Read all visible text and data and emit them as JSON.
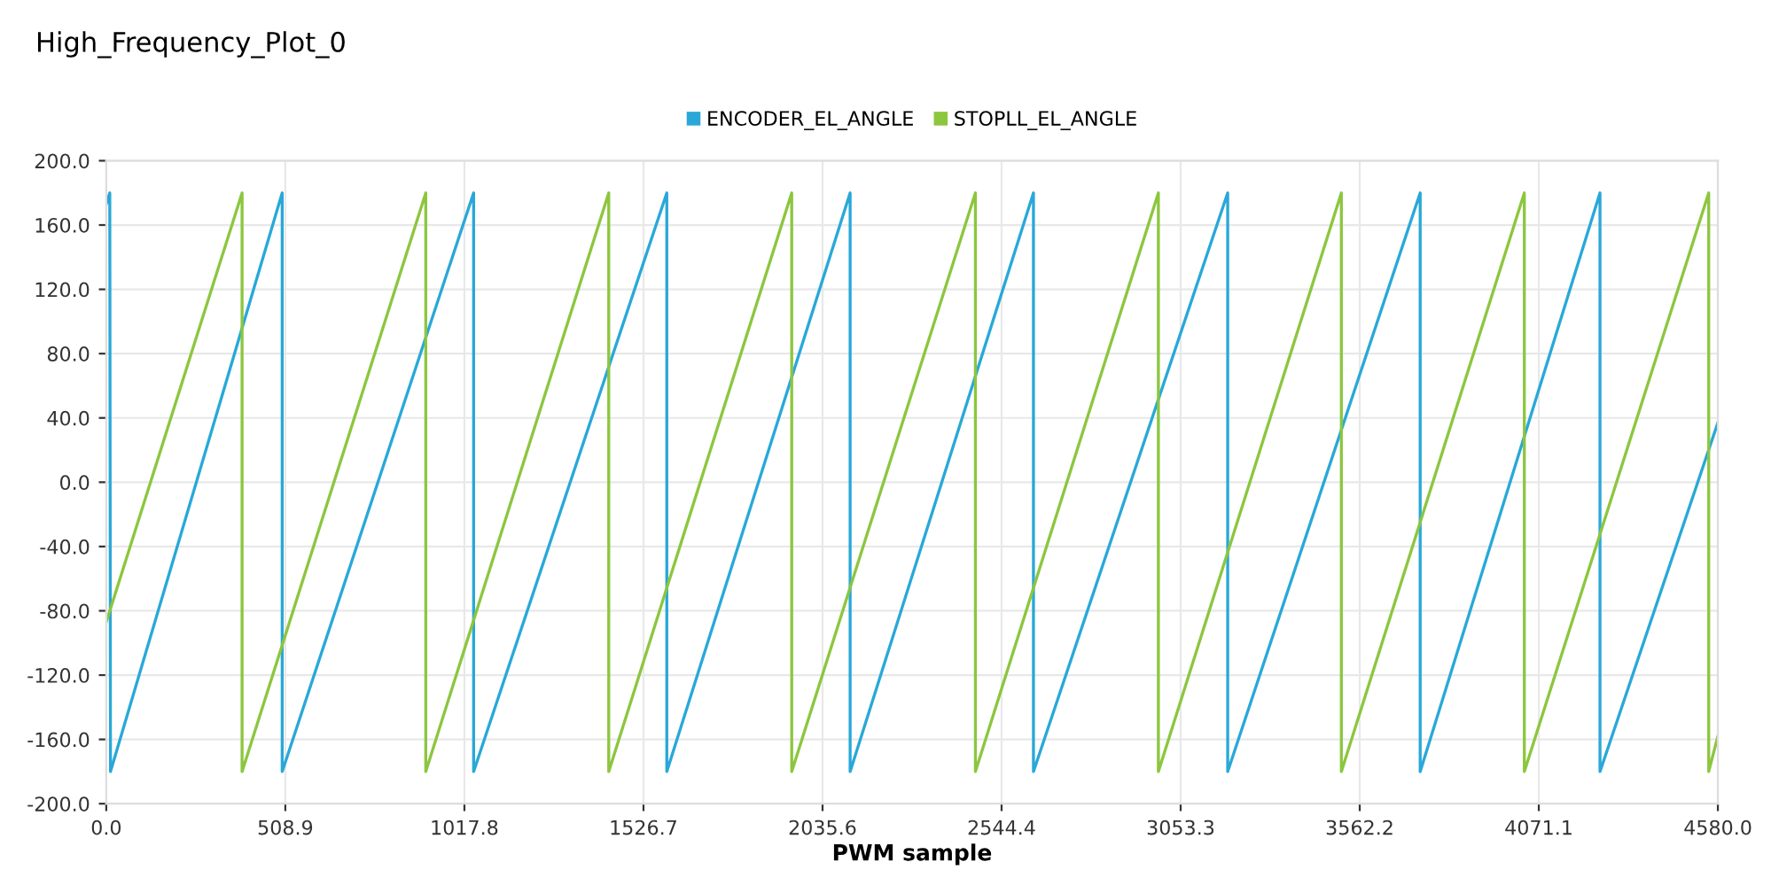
{
  "chart_data": {
    "type": "line",
    "title": "High_Frequency_Plot_0",
    "xlabel": "PWM sample",
    "series": [
      {
        "name": "ENCODER_EL_ANGLE",
        "color": "#29a8d8",
        "x": [
          0,
          10,
          12,
          500,
          500,
          1044,
          1044,
          1593,
          1593,
          2114,
          2114,
          2635,
          2635,
          3187,
          3187,
          3734,
          3734,
          4245,
          4245,
          4580
        ],
        "values": [
          173,
          180,
          -180,
          180,
          -180,
          180,
          -180,
          180,
          -180,
          180,
          -180,
          180,
          -180,
          180,
          -180,
          180,
          -180,
          180,
          -180,
          37
        ]
      },
      {
        "name": "STOPLL_EL_ANGLE",
        "color": "#8cc63f",
        "x": [
          0,
          386,
          386,
          908,
          908,
          1428,
          1428,
          1948,
          1948,
          2470,
          2470,
          2990,
          2990,
          3510,
          3510,
          4030,
          4030,
          4554,
          4554,
          4580
        ],
        "values": [
          -87,
          180,
          -180,
          180,
          -180,
          180,
          -180,
          180,
          -180,
          180,
          -180,
          180,
          -180,
          180,
          -180,
          180,
          -180,
          180,
          -180,
          -158
        ]
      }
    ],
    "xlim": [
      0,
      4580
    ],
    "xticks": [
      {
        "value": 0,
        "label": "0.0"
      },
      {
        "value": 508.9,
        "label": "508.9"
      },
      {
        "value": 1017.8,
        "label": "1017.8"
      },
      {
        "value": 1526.7,
        "label": "1526.7"
      },
      {
        "value": 2035.6,
        "label": "2035.6"
      },
      {
        "value": 2544.4,
        "label": "2544.4"
      },
      {
        "value": 3053.3,
        "label": "3053.3"
      },
      {
        "value": 3562.2,
        "label": "3562.2"
      },
      {
        "value": 4071.1,
        "label": "4071.1"
      },
      {
        "value": 4580,
        "label": "4580.0"
      }
    ],
    "ylim": [
      -200,
      200
    ],
    "yticks": [
      {
        "value": -200,
        "label": "-200.0"
      },
      {
        "value": -160,
        "label": "-160.0"
      },
      {
        "value": -120,
        "label": "-120.0"
      },
      {
        "value": -80,
        "label": "-80.0"
      },
      {
        "value": -40,
        "label": "-40.0"
      },
      {
        "value": 0,
        "label": "0.0"
      },
      {
        "value": 40,
        "label": "40.0"
      },
      {
        "value": 80,
        "label": "80.0"
      },
      {
        "value": 120,
        "label": "120.0"
      },
      {
        "value": 160,
        "label": "160.0"
      },
      {
        "value": 200,
        "label": "200.0"
      }
    ],
    "grid": true,
    "legend": "top",
    "marker": "none",
    "line_style": "solid"
  }
}
